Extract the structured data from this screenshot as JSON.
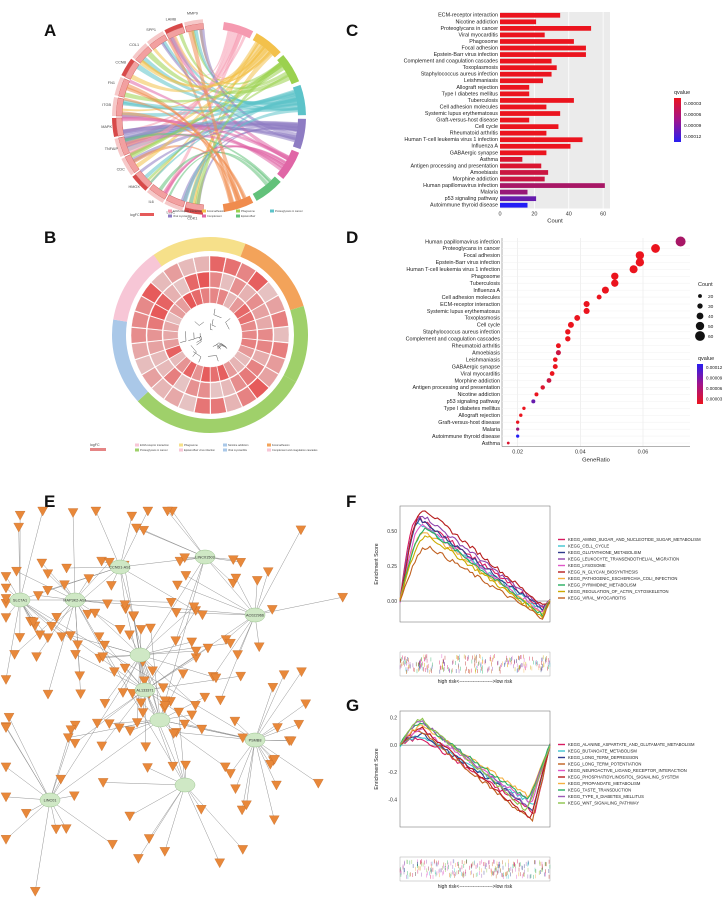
{
  "panel_labels": {
    "A": "A",
    "B": "B",
    "C": "C",
    "D": "D",
    "E": "E",
    "F": "F",
    "G": "G"
  },
  "chart_data": [
    {
      "id": "C",
      "type": "bar",
      "orientation": "horizontal",
      "categories": [
        "ECM-receptor interaction",
        "Nicotine addiction",
        "Proteoglycans in cancer",
        "Viral myocarditis",
        "Phagosome",
        "Focal adhesion",
        "Epstein-Barr virus infection",
        "Complement and coagulation cascades",
        "Toxoplasmosis",
        "Staphylococcus aureus infection",
        "Leishmaniasis",
        "Allograft rejection",
        "Type I diabetes mellitus",
        "Tuberculosis",
        "Cell adhesion molecules",
        "Systemic lupus erythematosus",
        "Graft-versus-host disease",
        "Cell cycle",
        "Rheumatoid arthritis",
        "Human T-cell leukemia virus 1 infection",
        "Influenza A",
        "GABAergic synapse",
        "Asthma",
        "Antigen processing and presentation",
        "Amoebiasis",
        "Morphine addiction",
        "Human papillomavirus infection",
        "Malaria",
        "p53 signaling pathway",
        "Autoimmune thyroid disease"
      ],
      "values": [
        35,
        21,
        53,
        26,
        43,
        50,
        50,
        30,
        33,
        30,
        25,
        17,
        17,
        43,
        27,
        35,
        17,
        34,
        27,
        48,
        41,
        27,
        13,
        24,
        28,
        26,
        61,
        16,
        21,
        16
      ],
      "qvalues": [
        1e-05,
        1e-05,
        1e-05,
        1e-05,
        1e-05,
        1e-05,
        1e-05,
        1e-05,
        1e-05,
        1e-05,
        1e-05,
        1e-05,
        1e-05,
        1e-05,
        1e-05,
        1e-05,
        1e-05,
        1e-05,
        1e-05,
        1e-05,
        1e-05,
        1e-05,
        2e-05,
        2e-05,
        3e-05,
        3e-05,
        5e-05,
        6e-05,
        9e-05,
        0.00013
      ],
      "xlabel": "Count",
      "xticks": [
        0,
        20,
        40,
        60
      ],
      "xlim": [
        0,
        64
      ],
      "legend_title": "qvalue",
      "legend_ticks": [
        "0.00003",
        "0.00006",
        "0.00009",
        "0.00012"
      ]
    },
    {
      "id": "D",
      "type": "scatter",
      "categories": [
        "Human papillomavirus infection",
        "Proteoglycans in cancer",
        "Focal adhesion",
        "Epstein-Barr virus infection",
        "Human T-cell leukemia virus 1 infection",
        "Phagosome",
        "Tuberculosis",
        "Influenza A",
        "Cell adhesion molecules",
        "ECM-receptor interaction",
        "Systemic lupus erythematosus",
        "Toxoplasmosis",
        "Cell cycle",
        "Staphylococcus aureus infection",
        "Complement and coagulation cascades",
        "Rheumatoid arthritis",
        "Amoebiasis",
        "Leishmaniasis",
        "GABAergic synapse",
        "Viral myocarditis",
        "Morphine addiction",
        "Antigen processing and presentation",
        "Nicotine addiction",
        "p53 signaling pathway",
        "Type I diabetes mellitus",
        "Allograft rejection",
        "Graft-versus-host disease",
        "Malaria",
        "Autoimmune thyroid disease",
        "Asthma"
      ],
      "generatio": [
        0.072,
        0.064,
        0.059,
        0.059,
        0.057,
        0.051,
        0.051,
        0.048,
        0.046,
        0.042,
        0.042,
        0.039,
        0.037,
        0.036,
        0.036,
        0.033,
        0.033,
        0.032,
        0.032,
        0.031,
        0.03,
        0.028,
        0.026,
        0.025,
        0.022,
        0.021,
        0.02,
        0.02,
        0.02,
        0.017
      ],
      "counts": [
        61,
        53,
        50,
        50,
        48,
        43,
        43,
        41,
        27,
        35,
        35,
        33,
        34,
        30,
        30,
        27,
        28,
        25,
        27,
        26,
        26,
        24,
        21,
        21,
        17,
        17,
        17,
        16,
        16,
        13
      ],
      "qvalues": [
        5e-05,
        1e-05,
        1e-05,
        1e-05,
        1e-05,
        1e-05,
        1e-05,
        1e-05,
        1e-05,
        1e-05,
        1e-05,
        1e-05,
        1e-05,
        1e-05,
        1e-05,
        1e-05,
        3e-05,
        1e-05,
        1e-05,
        1e-05,
        3e-05,
        2e-05,
        1e-05,
        9e-05,
        1e-05,
        1e-05,
        1e-05,
        6e-05,
        0.00013,
        2e-05
      ],
      "xlabel": "GeneRatio",
      "xticks": [
        0.02,
        0.04,
        0.06
      ],
      "xlim": [
        0.015,
        0.075
      ],
      "size_title": "Count",
      "size_ticks": [
        20,
        30,
        40,
        50,
        60
      ],
      "color_title": "qvalue",
      "color_ticks": [
        "0.00012",
        "0.00009",
        "0.00006",
        "0.00003"
      ]
    },
    {
      "id": "F",
      "type": "line",
      "ylabel": "Enrichment Score",
      "yticks": [
        "0.50",
        "0.25",
        "0.00"
      ],
      "ylim": [
        -0.15,
        0.68
      ],
      "xlabel": "high risk<-------------------->low risk",
      "series": [
        {
          "name": "KEGG_AMINO_SUGAR_AND_NUCLEOTIDE_SUGAR_METABOLISM",
          "color": "#d81b60",
          "peak": 0.6,
          "end": -0.05
        },
        {
          "name": "KEGG_CELL_CYCLE",
          "color": "#40c4d0",
          "peak": 0.56,
          "end": -0.07
        },
        {
          "name": "KEGG_GLUTATHIONE_METABOLISM",
          "color": "#2e3a8c",
          "peak": 0.58,
          "end": -0.06
        },
        {
          "name": "KEGG_LEUKOCYTE_TRANSENDOTHELIAL_MIGRATION",
          "color": "#8e44ad",
          "peak": 0.62,
          "end": -0.04
        },
        {
          "name": "KEGG_LYSOSOME",
          "color": "#e056c8",
          "peak": 0.54,
          "end": -0.08
        },
        {
          "name": "KEGG_N_GLYCAN_BIOSYNTHESIS",
          "color": "#b71c1c",
          "peak": 0.66,
          "end": -0.03
        },
        {
          "name": "KEGG_PATHOGENIC_ESCHERICHIA_COLI_INFECTION",
          "color": "#f5b041",
          "peak": 0.5,
          "end": -0.09
        },
        {
          "name": "KEGG_PYRIMIDINE_METABOLISM",
          "color": "#27ae60",
          "peak": 0.52,
          "end": -0.1
        },
        {
          "name": "KEGG_REGULATION_OF_ACTIN_CYTOSKELETON",
          "color": "#ccaa00",
          "peak": 0.47,
          "end": -0.11
        },
        {
          "name": "KEGG_VIRAL_MYOCARDITIS",
          "color": "#c06020",
          "peak": 0.39,
          "end": -0.12
        }
      ]
    },
    {
      "id": "G",
      "type": "line",
      "ylabel": "Enrichment Score",
      "yticks": [
        "0.2",
        "0.0",
        "-0.2",
        "-0.4"
      ],
      "ylim": [
        -0.6,
        0.25
      ],
      "xlabel": "high risk<-------------------->low risk",
      "series": [
        {
          "name": "KEGG_ALANINE_ASPARTATE_AND_GLUTAMATE_METABOLISM",
          "color": "#d81b60",
          "valley": -0.5
        },
        {
          "name": "KEGG_BUTANOATE_METABOLISM",
          "color": "#40c4d0",
          "valley": -0.44
        },
        {
          "name": "KEGG_LONG_TERM_DEPRESSION",
          "color": "#2e3a8c",
          "valley": -0.47
        },
        {
          "name": "KEGG_LONG_TERM_POTENTIATION",
          "color": "#c06020",
          "valley": -0.56
        },
        {
          "name": "KEGG_NEUROACTIVE_LIGAND_RECEPTOR_INTERACTION",
          "color": "#e056c8",
          "valley": -0.42
        },
        {
          "name": "KEGG_PHOSPHATIDYLINOSITOL_SIGNALING_SYSTEM",
          "color": "#b71c1c",
          "valley": -0.54
        },
        {
          "name": "KEGG_PROPANOATE_METABOLISM",
          "color": "#f5b041",
          "valley": -0.38
        },
        {
          "name": "KEGG_TASTE_TRANSDUCTION",
          "color": "#27ae60",
          "valley": -0.4
        },
        {
          "name": "KEGG_TYPE_II_DIABETES_MELLITUS",
          "color": "#9b59b6",
          "valley": -0.45
        },
        {
          "name": "KEGG_WNT_SIGNALING_PATHWAY",
          "color": "#8bc34a",
          "valley": -0.48
        }
      ]
    }
  ],
  "chord_A": {
    "genes": [
      "CDK1",
      "LINC",
      "IL6",
      "HMOX",
      "CDC",
      "TNFAIP",
      "MAPK",
      "ITGB",
      "FN1",
      "CCNB",
      "COL1",
      "SPP1",
      "LAMB",
      "MMP9"
    ],
    "legend_title": "logFC",
    "legend_terms": [
      "ECM-receptor interaction",
      "Focal adhesion",
      "Phagosome",
      "Proteoglycans in cancer",
      "Viral myocarditis",
      "Complement",
      "Epstein-Barr"
    ]
  },
  "circ_B": {
    "legend_title": "logFC",
    "legend_terms": [
      "ECM-receptor interaction",
      "Phagosome",
      "Nicotine addiction",
      "Focal adhesion",
      "Proteoglycans in cancer",
      "Epstein-Barr virus infection",
      "Viral myocarditis",
      "Complement and coagulation cascades"
    ]
  },
  "network_E": {
    "hubs": [
      "CCND1-AS1",
      "MAP3K2-AS1",
      "LINC01503",
      "AC022966",
      "SLC7A1",
      "AL133371",
      "PSMB8",
      "LINC01"
    ]
  }
}
